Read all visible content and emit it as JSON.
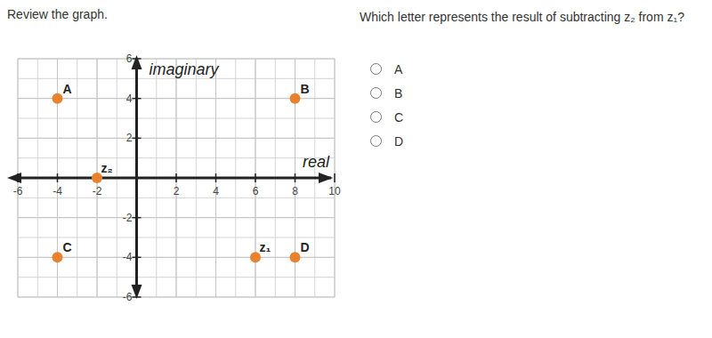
{
  "page": {
    "instruction": "Review the graph.",
    "question": "Which letter represents the result of subtracting z₂ from z₁?",
    "options": [
      "A",
      "B",
      "C",
      "D"
    ]
  },
  "chart_data": {
    "type": "scatter",
    "x": [
      -4,
      8,
      -4,
      8,
      -2,
      6
    ],
    "values": [
      4,
      4,
      -4,
      -4,
      0,
      -4
    ],
    "point_labels": [
      "A",
      "B",
      "C",
      "D",
      "z₂",
      "z₁"
    ],
    "color": "#e8822f",
    "marker": "circle",
    "xlabel": "real",
    "ylabel": "imaginary",
    "xlim": [
      -6,
      10
    ],
    "ylim": [
      -6,
      6
    ],
    "xticks": [
      -6,
      -4,
      -2,
      2,
      4,
      6,
      8,
      10
    ],
    "yticks": [
      -6,
      -4,
      -2,
      2,
      4,
      6
    ],
    "grid": true
  }
}
